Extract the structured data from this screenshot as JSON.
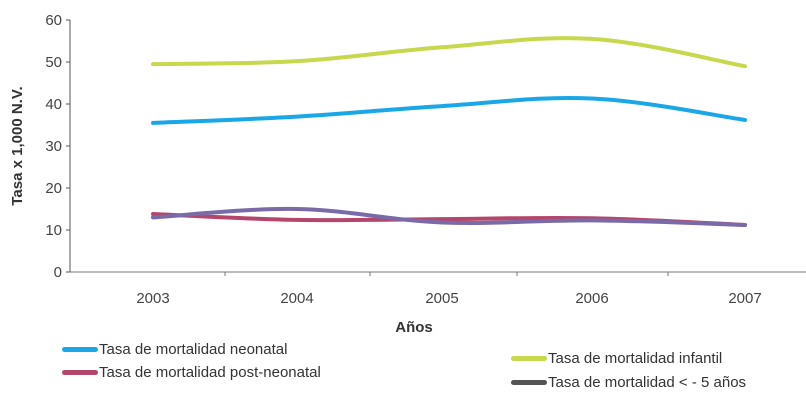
{
  "chart_data": {
    "type": "line",
    "categories": [
      "2003",
      "2004",
      "2005",
      "2006",
      "2007"
    ],
    "ylabel": "Tasa x 1,000 N.V.",
    "xlabel": "Años",
    "ylim": [
      0,
      60
    ],
    "yticks": [
      0,
      10,
      20,
      30,
      40,
      50,
      60
    ],
    "grid": false,
    "legend_position": "bottom",
    "series": [
      {
        "name": "Tasa de mortalidad neonatal",
        "color": "#1aa7e8",
        "values": [
          35.5,
          37.0,
          39.5,
          41.3,
          36.2
        ]
      },
      {
        "name": "Tasa de mortalidad post-neonatal",
        "color": "#b5466b",
        "values": [
          13.8,
          12.4,
          12.6,
          12.8,
          11.2
        ]
      },
      {
        "name": "Tasa de mortalidad infantil",
        "color": "#c7d84c",
        "values": [
          49.5,
          50.2,
          53.5,
          55.5,
          49.0
        ]
      },
      {
        "name": "Tasa de mortalidad < - 5 años",
        "color": "#7a6aa8",
        "values": [
          13.0,
          15.0,
          11.8,
          12.3,
          11.2
        ]
      }
    ]
  }
}
